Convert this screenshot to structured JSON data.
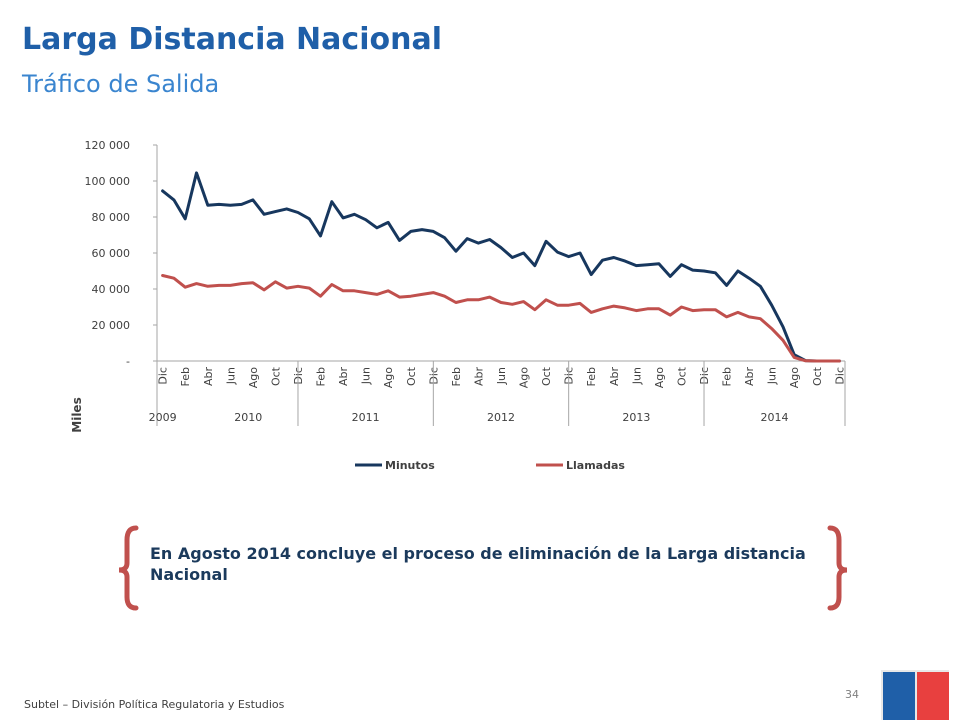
{
  "header": {
    "title": "Larga Distancia Nacional",
    "subtitle": "Tráfico de Salida"
  },
  "callout": {
    "text": "En Agosto 2014 concluye el proceso de eliminación de la Larga distancia Nacional"
  },
  "footer": {
    "text": "Subtel – División Política Regulatoria y Estudios",
    "page": "34"
  },
  "colors": {
    "minutos": "#17375e",
    "llamadas": "#c0504d",
    "title": "#1f5fa8",
    "subtitle": "#3a85cf",
    "bracket": "#c0504d",
    "logo_blue": "#1f5fa8",
    "logo_red": "#e8403f"
  },
  "chart_data": {
    "type": "line",
    "ylabel": "Miles",
    "ylim": [
      0,
      120000
    ],
    "yticks": [
      0,
      20000,
      40000,
      60000,
      80000,
      100000,
      120000
    ],
    "ytick_labels": [
      "-",
      "20 000",
      "40 000",
      "60 000",
      "80 000",
      "100 000",
      "120 000"
    ],
    "grid": false,
    "legend_position": "bottom",
    "x_month_labels": [
      "Dic",
      "Feb",
      "Abr",
      "Jun",
      "Ago",
      "Oct",
      "Dic",
      "Feb",
      "Abr",
      "Jun",
      "Ago",
      "Oct",
      "Dic",
      "Feb",
      "Abr",
      "Jun",
      "Ago",
      "Oct",
      "Dic",
      "Feb",
      "Abr",
      "Jun",
      "Ago",
      "Oct",
      "Dic",
      "Feb",
      "Abr",
      "Jun",
      "Ago",
      "Oct",
      "Dic"
    ],
    "x_year_labels": [
      "2009",
      "2010",
      "2011",
      "2012",
      "2013",
      "2014"
    ],
    "series": [
      {
        "name": "Minutos",
        "values": [
          94500,
          89500,
          79000,
          104500,
          86500,
          87000,
          86500,
          87000,
          89500,
          81500,
          83000,
          84500,
          82500,
          79000,
          69500,
          88500,
          79500,
          81500,
          78500,
          74000,
          77000,
          67000,
          72000,
          73000,
          72000,
          68500,
          61000,
          68000,
          65500,
          67500,
          63000,
          57500,
          60000,
          53000,
          66500,
          60500,
          58000,
          60000,
          48000,
          56000,
          57500,
          55500,
          53000,
          53500,
          54000,
          47000,
          53500,
          50500,
          50000,
          49000,
          42000,
          50000,
          46000,
          41500,
          31000,
          19000,
          3500,
          200,
          0,
          0,
          0
        ]
      },
      {
        "name": "Llamadas",
        "values": [
          47500,
          46000,
          41000,
          43000,
          41500,
          42000,
          42000,
          43000,
          43500,
          39500,
          44000,
          40500,
          41500,
          40500,
          36000,
          42500,
          39000,
          39000,
          38000,
          37000,
          39000,
          35500,
          36000,
          37000,
          38000,
          36000,
          32500,
          34000,
          34000,
          35500,
          32500,
          31500,
          33000,
          28500,
          34000,
          31000,
          31000,
          32000,
          27000,
          29000,
          30500,
          29500,
          28000,
          29000,
          29000,
          25500,
          30000,
          28000,
          28500,
          28500,
          24500,
          27000,
          24500,
          23500,
          18000,
          11500,
          2000,
          100,
          0,
          0,
          0
        ]
      }
    ]
  }
}
